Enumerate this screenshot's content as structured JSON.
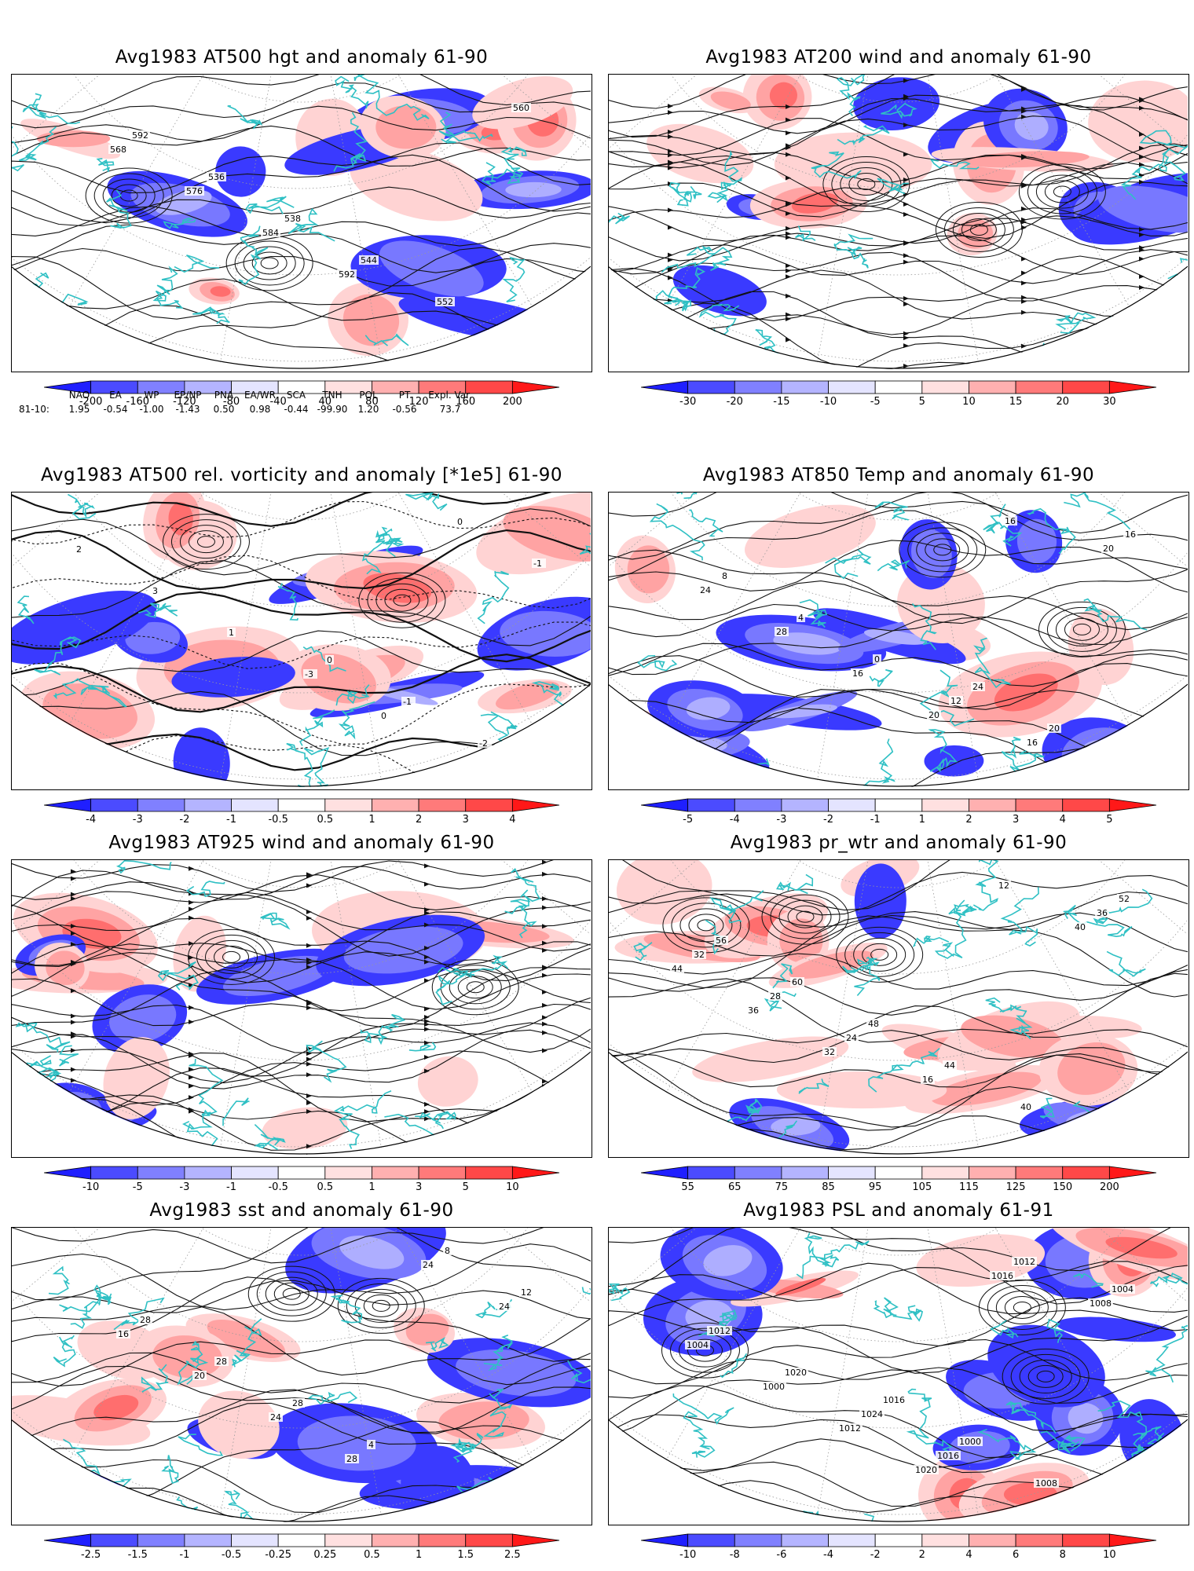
{
  "panels": [
    {
      "title": "Avg1983 AT500 hgt and anomaly 61-90",
      "kind": "contour",
      "seed": 3,
      "colorbar": [
        "-200",
        "-160",
        "-120",
        "-80",
        "-40",
        "40",
        "80",
        "120",
        "160",
        "200"
      ],
      "labels": [
        "592",
        "536",
        "538",
        "544",
        "552",
        "560",
        "568",
        "576",
        "584",
        "592"
      ]
    },
    {
      "title": "Avg1983 AT200 wind and anomaly 61-90",
      "kind": "stream",
      "seed": 7,
      "colorbar": [
        "-30",
        "-20",
        "-15",
        "-10",
        "-5",
        "5",
        "10",
        "15",
        "20",
        "30"
      ],
      "labels": []
    },
    {
      "title": "Avg1983 AT500 rel. vorticity and anomaly [*1e5] 61-90",
      "kind": "vort",
      "seed": 11,
      "colorbar": [
        "-4",
        "-3",
        "-2",
        "-1",
        "-0.5",
        "0.5",
        "1",
        "2",
        "3",
        "4"
      ],
      "labels": [
        "0",
        "-1",
        "-2",
        "2",
        "3",
        "1",
        "-3",
        "0",
        "0",
        "-1"
      ]
    },
    {
      "title": "Avg1983 AT850 Temp and anomaly 61-90",
      "kind": "contour",
      "seed": 13,
      "colorbar": [
        "-5",
        "-4",
        "-3",
        "-2",
        "-1",
        "1",
        "2",
        "3",
        "4",
        "5"
      ],
      "labels": [
        "24",
        "20",
        "16",
        "8",
        "4",
        "0",
        "12",
        "16",
        "20",
        "24",
        "28",
        "16",
        "20",
        "16"
      ]
    },
    {
      "title": "Avg1983 AT925 wind and anomaly 61-90",
      "kind": "stream",
      "seed": 17,
      "colorbar": [
        "-10",
        "-5",
        "-3",
        "-1",
        "-0.5",
        "0.5",
        "1",
        "3",
        "5",
        "10"
      ],
      "labels": []
    },
    {
      "title": "Avg1983 pr_wtr and anomaly 61-90",
      "kind": "contour",
      "seed": 19,
      "colorbar": [
        "55",
        "65",
        "75",
        "85",
        "95",
        "105",
        "115",
        "125",
        "150",
        "200"
      ],
      "labels": [
        "52",
        "56",
        "60",
        "48",
        "44",
        "40",
        "36",
        "32",
        "28",
        "24",
        "16",
        "12",
        "40",
        "44",
        "36",
        "32"
      ]
    },
    {
      "title": "Avg1983 sst and anomaly 61-90",
      "kind": "contour",
      "seed": 23,
      "colorbar": [
        "-2.5",
        "-1.5",
        "-1",
        "-0.5",
        "-0.25",
        "0.25",
        "0.5",
        "1",
        "1.5",
        "2.5"
      ],
      "labels": [
        "28",
        "28",
        "28",
        "4",
        "8",
        "12",
        "16",
        "20",
        "24",
        "28",
        "24",
        "24"
      ]
    },
    {
      "title": "Avg1983 PSL and anomaly 61-91",
      "kind": "contour",
      "seed": 29,
      "colorbar": [
        "-10",
        "-8",
        "-6",
        "-4",
        "-2",
        "2",
        "4",
        "6",
        "8",
        "10"
      ],
      "labels": [
        "1016",
        "1000",
        "1008",
        "1004",
        "1012",
        "1020",
        "1024",
        "1016",
        "1012",
        "1008",
        "1004",
        "1000",
        "1012",
        "1020",
        "1016"
      ]
    }
  ],
  "teleconnections": {
    "headers": [
      "NAO",
      "EA",
      "WP",
      "EP/NP",
      "PNA",
      "EA/WR",
      "SCA",
      "TNH",
      "POL",
      "PT",
      "Expl. Var."
    ],
    "row_label": "81-10:",
    "values": [
      "1.95",
      "-0.54",
      "-1.00",
      "-1.43",
      "0.50",
      "0.98",
      "-0.44",
      "-99.90",
      "1.20",
      "-0.56",
      "73.7"
    ]
  },
  "colors": {
    "coast": "#2fc0c4",
    "cb": [
      "#1f1fff",
      "#4b4bff",
      "#8080ff",
      "#b4b4ff",
      "#e4e4ff",
      "#ffffff",
      "#ffe0e0",
      "#ffb0b0",
      "#ff7a7a",
      "#ff4848",
      "#ff1818"
    ],
    "neg_fill": [
      "#3a3aff",
      "#7878ff",
      "#aeaeff",
      "#d9d9ff"
    ],
    "pos_fill": [
      "#ffd3d3",
      "#ffa3a3",
      "#ff6e6e",
      "#ff3a3a"
    ]
  }
}
